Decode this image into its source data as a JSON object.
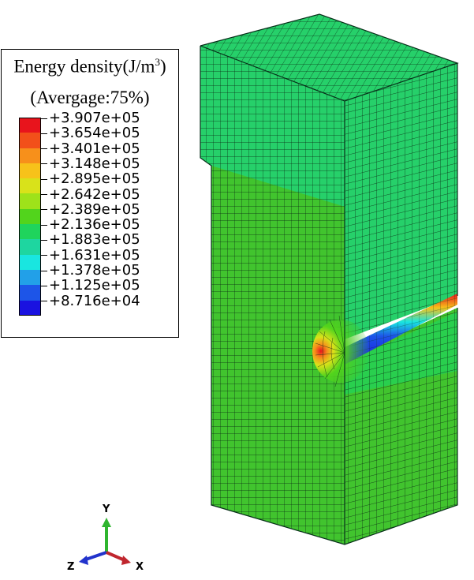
{
  "legend": {
    "title": "Energy density(J/m",
    "title_sup": "3",
    "title_close": ")",
    "subtitle": "(Avergage:75%)",
    "entries": [
      {
        "label": "+3.907e+05",
        "color": "#e8141c"
      },
      {
        "label": "+3.654e+05",
        "color": "#f2501a"
      },
      {
        "label": "+3.401e+05",
        "color": "#f7901b"
      },
      {
        "label": "+3.148e+05",
        "color": "#f7c21a"
      },
      {
        "label": "+2.895e+05",
        "color": "#d9e21a"
      },
      {
        "label": "+2.642e+05",
        "color": "#9ee21a"
      },
      {
        "label": "+2.389e+05",
        "color": "#52d41c"
      },
      {
        "label": "+2.136e+05",
        "color": "#1fd45c"
      },
      {
        "label": "+1.883e+05",
        "color": "#1ed6a0"
      },
      {
        "label": "+1.631e+05",
        "color": "#19e6e0"
      },
      {
        "label": "+1.378e+05",
        "color": "#22a0e8"
      },
      {
        "label": "+1.125e+05",
        "color": "#1d55e8"
      },
      {
        "label": "+8.716e+04",
        "color": "#1a12e0"
      }
    ]
  },
  "model": {
    "top_block_color": "#26d06a",
    "bottom_block_color": "#41c42e",
    "mesh_color": "#0a2a14"
  },
  "triad": {
    "y_label": "Y",
    "z_label": "Z",
    "x_label": "X",
    "y_color": "#2fb52f",
    "z_color": "#2233cc",
    "x_color": "#c0262e"
  }
}
